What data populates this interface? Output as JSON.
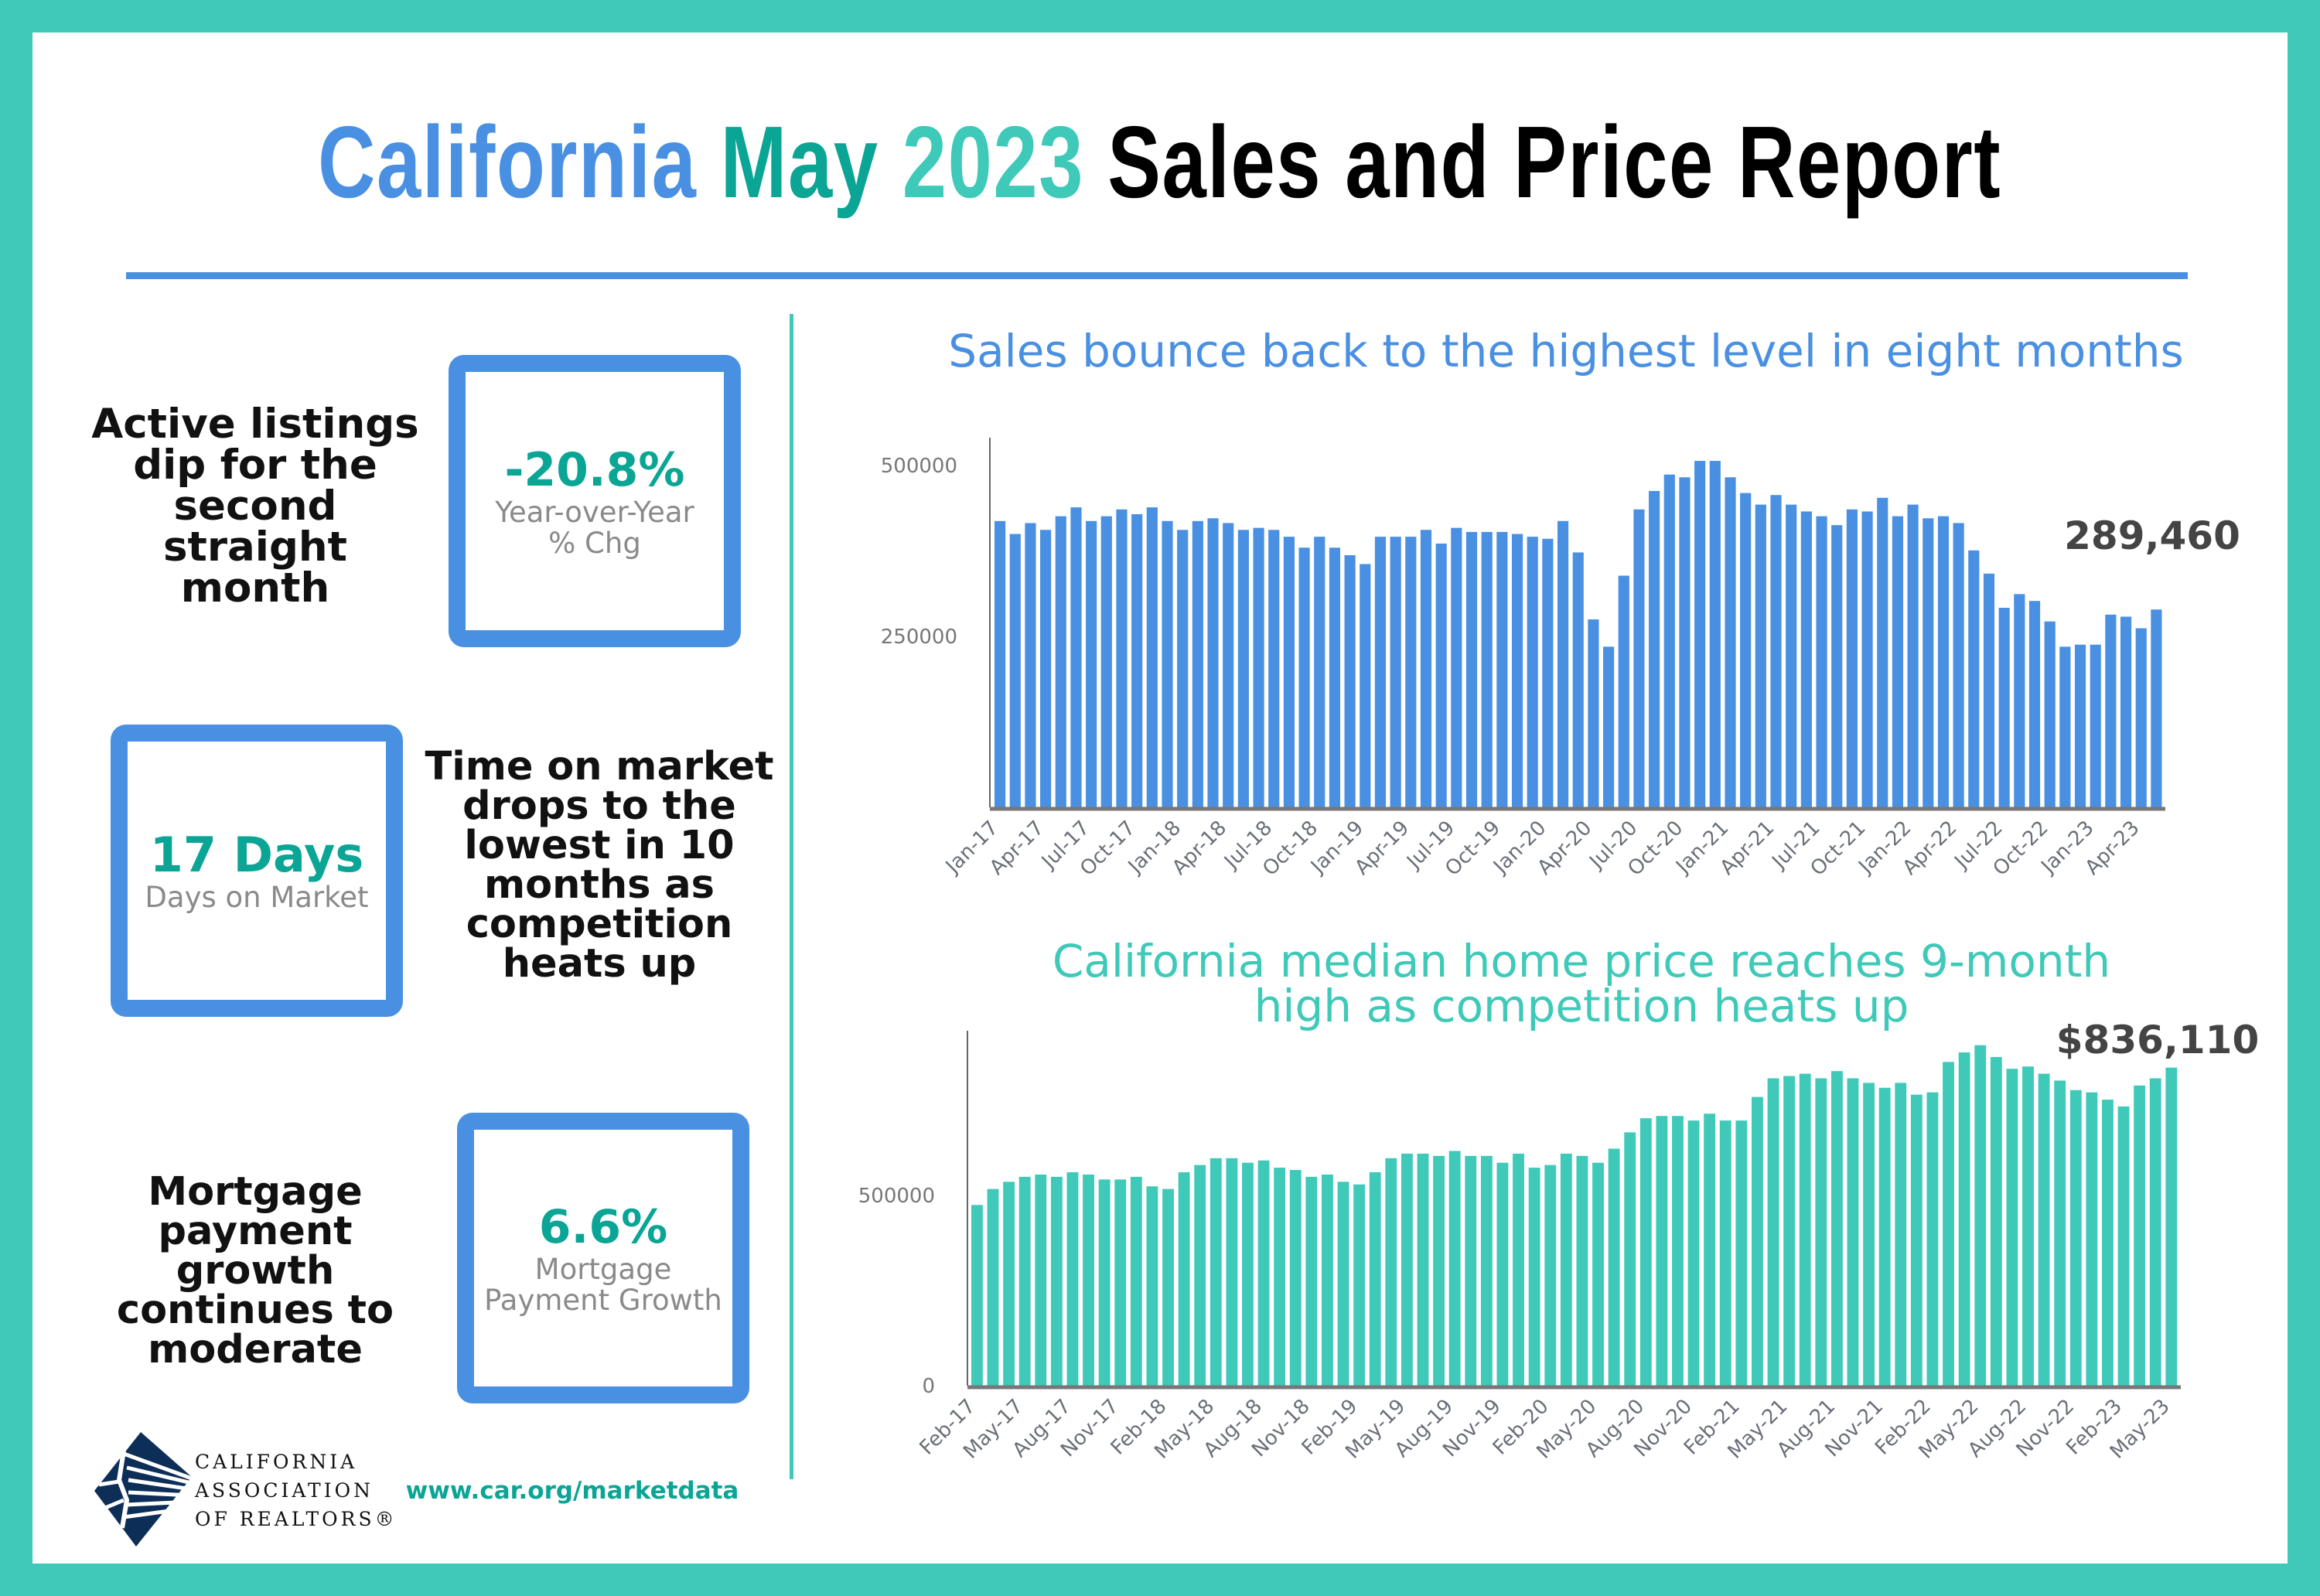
{
  "title": {
    "part1": "California",
    "part2": "May",
    "part3": "2023",
    "part4": "Sales and Price Report"
  },
  "colors": {
    "border": "#3ec9b9",
    "blue": "#4a90e2",
    "teal": "#3ec9b9",
    "dark_teal": "#0aa594",
    "navy": "#0d2f57"
  },
  "left_panel": {
    "listings": {
      "text": [
        "Active listings",
        "dip for the",
        "second",
        "straight",
        "month"
      ],
      "value": "-20.8%",
      "label_lines": [
        "Year-over-Year",
        "% Chg"
      ]
    },
    "days": {
      "value": "17 Days",
      "label": "Days on Market",
      "text": [
        "Time on market",
        "drops to the",
        "lowest in 10",
        "months as",
        "competition",
        "heats up"
      ]
    },
    "mortgage": {
      "text": [
        "Mortgage",
        "payment",
        "growth",
        "continues to",
        "moderate"
      ],
      "value": "6.6%",
      "label_lines": [
        "Mortgage",
        "Payment Growth"
      ]
    }
  },
  "logo": {
    "lines": [
      "CALIFORNIA",
      "ASSOCIATION",
      "OF REALTORS®"
    ]
  },
  "footer": {
    "url": "www.car.org/marketdata"
  },
  "chart_data": [
    {
      "type": "bar",
      "title": "Sales bounce back to the highest level in eight months",
      "x_range": [
        "Jan-17",
        "May-23"
      ],
      "x_tick_labels": [
        "Jan-17",
        "Apr-17",
        "Jul-17",
        "Oct-17",
        "Jan-18",
        "Apr-18",
        "Jul-18",
        "Oct-18",
        "Jan-19",
        "Apr-19",
        "Jul-19",
        "Oct-19",
        "Jan-20",
        "Apr-20",
        "Jul-20",
        "Oct-20",
        "Jan-21",
        "Apr-21",
        "Jul-21",
        "Oct-21",
        "Jan-22",
        "Apr-22",
        "Jul-22",
        "Oct-22",
        "Jan-23",
        "Apr-23"
      ],
      "y_tick_labels": [
        "250000",
        "500000"
      ],
      "y_ticks": [
        250000,
        500000
      ],
      "ylim": [
        0,
        541000
      ],
      "color": "#4a90e2",
      "annotation": "289,460",
      "values": [
        419000,
        400000,
        416000,
        406000,
        426000,
        439000,
        419000,
        426000,
        436000,
        429000,
        439000,
        419000,
        406000,
        419000,
        423000,
        416000,
        406000,
        409000,
        406000,
        396000,
        380000,
        396000,
        380000,
        369000,
        356000,
        396000,
        396000,
        396000,
        406000,
        386000,
        409000,
        403000,
        403000,
        403000,
        400000,
        396000,
        393000,
        419000,
        373000,
        275000,
        235000,
        339000,
        436000,
        463000,
        487000,
        483000,
        507000,
        507000,
        483000,
        460000,
        443000,
        457000,
        443000,
        433000,
        426000,
        413000,
        436000,
        433000,
        453000,
        426000,
        443000,
        423000,
        426000,
        416000,
        376000,
        342000,
        292000,
        312000,
        302000,
        272000,
        235000,
        238000,
        238000,
        282000,
        279000,
        262000,
        289460
      ]
    },
    {
      "type": "bar",
      "title_lines": [
        "California median home price reaches 9-month",
        "high as competition heats up"
      ],
      "x_range": [
        "Feb-17",
        "May-23"
      ],
      "x_tick_labels": [
        "Feb-17",
        "May-17",
        "Aug-17",
        "Nov-17",
        "Feb-18",
        "May-18",
        "Aug-18",
        "Nov-18",
        "Feb-19",
        "May-19",
        "Aug-19",
        "Nov-19",
        "Feb-20",
        "May-20",
        "Aug-20",
        "Nov-20",
        "Feb-21",
        "May-21",
        "Aug-21",
        "Nov-21",
        "Feb-22",
        "May-22",
        "Aug-22",
        "Nov-22",
        "Feb-23",
        "May-23"
      ],
      "y_tick_labels": [
        "0",
        "500000"
      ],
      "y_ticks": [
        0,
        500000
      ],
      "ylim": [
        0,
        933000
      ],
      "color": "#3ec9b9",
      "annotation": "$836,110",
      "values": [
        475000,
        517000,
        536000,
        549000,
        555000,
        549000,
        561000,
        555000,
        542000,
        542000,
        549000,
        524000,
        517000,
        561000,
        580000,
        598000,
        598000,
        586000,
        592000,
        573000,
        567000,
        549000,
        555000,
        536000,
        529000,
        561000,
        598000,
        610000,
        610000,
        604000,
        617000,
        604000,
        604000,
        586000,
        610000,
        573000,
        580000,
        610000,
        604000,
        586000,
        623000,
        666000,
        703000,
        709000,
        709000,
        697000,
        715000,
        697000,
        697000,
        759000,
        808000,
        814000,
        820000,
        808000,
        827000,
        808000,
        796000,
        783000,
        796000,
        765000,
        771000,
        851000,
        876000,
        895000,
        864000,
        833000,
        839000,
        820000,
        802000,
        777000,
        771000,
        752000,
        734000,
        789000,
        808000,
        836110
      ]
    }
  ]
}
